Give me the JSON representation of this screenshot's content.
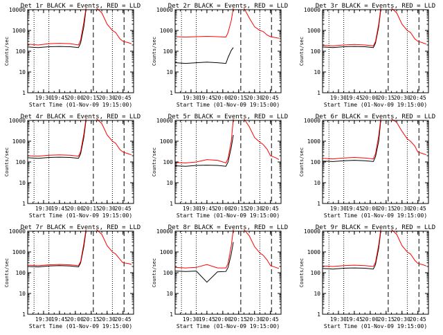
{
  "figure": {
    "xlabel": "Start Time (01-Nov-09 19:15:00)",
    "ylabel": "Counts/sec"
  },
  "colors": {
    "events": "#000000",
    "lld": "#ff0000",
    "axis": "#000000"
  },
  "chart_data": [
    {
      "type": "line",
      "title": "Det 1r BLACK = Events, RED = LLD",
      "xlabel": "Start Time (01-Nov-09 19:15:00)",
      "ylabel": "Counts/sec",
      "xlim": [
        "19:15",
        "20:55"
      ],
      "ylim": [
        1,
        10000
      ],
      "yscale": "log",
      "x_ticks": [
        "19:30",
        "19:45",
        "20:00",
        "20:15",
        "20:30",
        "20:45"
      ],
      "y_ticks": [
        "1",
        "10",
        "100",
        "1000",
        "10000"
      ],
      "dotted_lines": [
        "19:21",
        "19:35",
        "20:35"
      ],
      "dashed_lines": [
        "20:17",
        "20:46"
      ],
      "series": [
        {
          "x": [
            "19:15",
            "19:25",
            "19:35",
            "19:45",
            "19:55",
            "20:03",
            "20:05",
            "20:08",
            "20:10"
          ],
          "y": [
            160,
            150,
            165,
            170,
            165,
            150,
            250,
            1500,
            10000
          ]
        },
        {
          "x": [
            "19:15",
            "19:25",
            "19:35",
            "19:45",
            "19:55",
            "20:03",
            "20:05",
            "20:08",
            "20:10"
          ],
          "y": [
            220,
            200,
            230,
            240,
            230,
            200,
            350,
            2500,
            12000
          ]
        },
        {
          "x": [
            "20:20",
            "20:25",
            "20:30",
            "20:35",
            "20:38",
            "20:42",
            "20:45",
            "20:50",
            "20:53"
          ],
          "y": [
            12000,
            7000,
            2000,
            1000,
            800,
            400,
            300,
            260,
            230
          ]
        }
      ]
    },
    {
      "type": "line",
      "title": "Det 2r BLACK = Events, RED = LLD",
      "xlabel": "Start Time (01-Nov-09 19:15:00)",
      "ylabel": "Counts/sec",
      "xlim": [
        "19:15",
        "20:55"
      ],
      "ylim": [
        1,
        10000
      ],
      "yscale": "log",
      "x_ticks": [
        "19:30",
        "19:45",
        "20:00",
        "20:15",
        "20:30",
        "20:45"
      ],
      "y_ticks": [
        "1",
        "10",
        "100",
        "1000",
        "10000"
      ],
      "dotted_lines": [
        "19:21",
        "19:35",
        "20:35"
      ],
      "dashed_lines": [
        "20:17",
        "20:46"
      ],
      "series": [
        {
          "x": [
            "19:15",
            "19:25",
            "19:35",
            "19:45",
            "19:55",
            "20:03",
            "20:05",
            "20:08",
            "20:10"
          ],
          "y": [
            28,
            26,
            28,
            30,
            28,
            26,
            50,
            110,
            150
          ]
        },
        {
          "x": [
            "19:15",
            "19:25",
            "19:35",
            "19:45",
            "19:55",
            "20:03",
            "20:05",
            "20:08",
            "20:10"
          ],
          "y": [
            500,
            480,
            500,
            520,
            500,
            480,
            800,
            3000,
            12000
          ]
        },
        {
          "x": [
            "20:20",
            "20:25",
            "20:30",
            "20:35",
            "20:38",
            "20:42",
            "20:45",
            "20:50",
            "20:53"
          ],
          "y": [
            12000,
            4000,
            1500,
            1000,
            900,
            600,
            500,
            450,
            420
          ]
        }
      ]
    },
    {
      "type": "line",
      "title": "Det 3r BLACK = Events, RED = LLD",
      "xlabel": "Start Time (01-Nov-09 19:15:00)",
      "ylabel": "Counts/sec",
      "xlim": [
        "19:15",
        "20:55"
      ],
      "ylim": [
        1,
        10000
      ],
      "yscale": "log",
      "x_ticks": [
        "19:30",
        "19:45",
        "20:00",
        "20:15",
        "20:30",
        "20:45"
      ],
      "y_ticks": [
        "1",
        "10",
        "100",
        "1000",
        "10000"
      ],
      "dotted_lines": [
        "19:21",
        "19:35",
        "20:35"
      ],
      "dashed_lines": [
        "20:17",
        "20:46"
      ],
      "series": [
        {
          "x": [
            "19:15",
            "19:25",
            "19:35",
            "19:45",
            "19:55",
            "20:03",
            "20:05",
            "20:08",
            "20:10"
          ],
          "y": [
            160,
            150,
            165,
            170,
            165,
            150,
            250,
            1500,
            10000
          ]
        },
        {
          "x": [
            "19:15",
            "19:25",
            "19:35",
            "19:45",
            "19:55",
            "20:03",
            "20:05",
            "20:08",
            "20:10"
          ],
          "y": [
            190,
            180,
            200,
            210,
            200,
            180,
            300,
            2000,
            12000
          ]
        },
        {
          "x": [
            "20:20",
            "20:25",
            "20:30",
            "20:35",
            "20:38",
            "20:42",
            "20:45",
            "20:50",
            "20:53"
          ],
          "y": [
            12000,
            7000,
            2000,
            1000,
            800,
            400,
            300,
            250,
            220
          ]
        }
      ]
    },
    {
      "type": "line",
      "title": "Det 4r BLACK = Events, RED = LLD",
      "xlabel": "Start Time (01-Nov-09 19:15:00)",
      "ylabel": "Counts/sec",
      "xlim": [
        "19:15",
        "20:55"
      ],
      "ylim": [
        1,
        10000
      ],
      "yscale": "log",
      "x_ticks": [
        "19:30",
        "19:45",
        "20:00",
        "20:15",
        "20:30",
        "20:45"
      ],
      "y_ticks": [
        "1",
        "10",
        "100",
        "1000",
        "10000"
      ],
      "dotted_lines": [
        "19:21",
        "19:35",
        "20:35"
      ],
      "dashed_lines": [
        "20:17",
        "20:46"
      ],
      "series": [
        {
          "x": [
            "19:15",
            "19:25",
            "19:35",
            "19:45",
            "19:55",
            "20:03",
            "20:05",
            "20:08",
            "20:10"
          ],
          "y": [
            160,
            150,
            165,
            170,
            165,
            150,
            250,
            1500,
            10000
          ]
        },
        {
          "x": [
            "19:15",
            "19:25",
            "19:35",
            "19:45",
            "19:55",
            "20:03",
            "20:05",
            "20:08",
            "20:10"
          ],
          "y": [
            200,
            190,
            210,
            220,
            210,
            190,
            320,
            2200,
            12000
          ]
        },
        {
          "x": [
            "20:20",
            "20:25",
            "20:30",
            "20:35",
            "20:38",
            "20:42",
            "20:45",
            "20:50",
            "20:53"
          ],
          "y": [
            12000,
            7000,
            2000,
            1000,
            800,
            400,
            300,
            250,
            220
          ]
        }
      ]
    },
    {
      "type": "line",
      "title": "Det 5r BLACK = Events, RED = LLD",
      "xlabel": "Start Time (01-Nov-09 19:15:00)",
      "ylabel": "Counts/sec",
      "xlim": [
        "19:15",
        "20:55"
      ],
      "ylim": [
        1,
        10000
      ],
      "yscale": "log",
      "x_ticks": [
        "19:30",
        "19:45",
        "20:00",
        "20:15",
        "20:30",
        "20:45"
      ],
      "y_ticks": [
        "1",
        "10",
        "100",
        "1000",
        "10000"
      ],
      "dotted_lines": [
        "19:21",
        "19:35",
        "20:35"
      ],
      "dashed_lines": [
        "20:17",
        "20:46"
      ],
      "series": [
        {
          "x": [
            "19:15",
            "19:25",
            "19:35",
            "19:45",
            "19:55",
            "20:03",
            "20:05",
            "20:08",
            "20:10"
          ],
          "y": [
            65,
            62,
            68,
            70,
            68,
            62,
            100,
            500,
            2000
          ]
        },
        {
          "x": [
            "19:15",
            "19:25",
            "19:35",
            "19:45",
            "19:55",
            "20:03",
            "20:05",
            "20:08",
            "20:10"
          ],
          "y": [
            95,
            90,
            100,
            130,
            120,
            90,
            150,
            1000,
            12000
          ]
        },
        {
          "x": [
            "20:20",
            "20:25",
            "20:30",
            "20:35",
            "20:38",
            "20:42",
            "20:45",
            "20:50",
            "20:53"
          ],
          "y": [
            12000,
            5000,
            1500,
            900,
            700,
            400,
            200,
            160,
            130
          ]
        }
      ]
    },
    {
      "type": "line",
      "title": "Det 6r BLACK = Events, RED = LLD",
      "xlabel": "Start Time (01-Nov-09 19:15:00)",
      "ylabel": "Counts/sec",
      "xlim": [
        "19:15",
        "20:55"
      ],
      "ylim": [
        1,
        10000
      ],
      "yscale": "log",
      "x_ticks": [
        "19:30",
        "19:45",
        "20:00",
        "20:15",
        "20:30",
        "20:45"
      ],
      "y_ticks": [
        "1",
        "10",
        "100",
        "1000",
        "10000"
      ],
      "dotted_lines": [
        "19:21",
        "19:35",
        "20:35"
      ],
      "dashed_lines": [
        "20:17",
        "20:46"
      ],
      "series": [
        {
          "x": [
            "19:15",
            "19:25",
            "19:35",
            "19:45",
            "19:55",
            "20:03",
            "20:05",
            "20:08",
            "20:10"
          ],
          "y": [
            110,
            105,
            115,
            120,
            115,
            105,
            180,
            1000,
            10000
          ]
        },
        {
          "x": [
            "19:15",
            "19:25",
            "19:35",
            "19:45",
            "19:55",
            "20:03",
            "20:05",
            "20:08",
            "20:10"
          ],
          "y": [
            150,
            140,
            155,
            165,
            155,
            140,
            250,
            1800,
            12000
          ]
        },
        {
          "x": [
            "20:20",
            "20:25",
            "20:30",
            "20:35",
            "20:38",
            "20:42",
            "20:45",
            "20:50",
            "20:53"
          ],
          "y": [
            12000,
            8000,
            3000,
            1300,
            1000,
            600,
            300,
            250,
            220
          ]
        }
      ]
    },
    {
      "type": "line",
      "title": "Det 7r BLACK = Events, RED = LLD",
      "xlabel": "Start Time (01-Nov-09 19:15:00)",
      "ylabel": "Counts/sec",
      "xlim": [
        "19:15",
        "20:55"
      ],
      "ylim": [
        1,
        10000
      ],
      "yscale": "log",
      "x_ticks": [
        "19:30",
        "19:45",
        "20:00",
        "20:15",
        "20:30",
        "20:45"
      ],
      "y_ticks": [
        "1",
        "10",
        "100",
        "1000",
        "10000"
      ],
      "dotted_lines": [
        "19:21",
        "19:35",
        "20:35"
      ],
      "dashed_lines": [
        "20:17",
        "20:46"
      ],
      "series": [
        {
          "x": [
            "19:15",
            "19:25",
            "19:35",
            "19:45",
            "19:55",
            "20:03",
            "20:05",
            "20:08",
            "20:10"
          ],
          "y": [
            200,
            190,
            210,
            220,
            210,
            190,
            300,
            1800,
            10000
          ]
        },
        {
          "x": [
            "19:15",
            "19:25",
            "19:35",
            "19:45",
            "19:55",
            "20:03",
            "20:05",
            "20:08",
            "20:10"
          ],
          "y": [
            230,
            220,
            240,
            250,
            240,
            220,
            350,
            2500,
            12000
          ]
        },
        {
          "x": [
            "20:20",
            "20:25",
            "20:30",
            "20:35",
            "20:38",
            "20:42",
            "20:45",
            "20:50",
            "20:53"
          ],
          "y": [
            12000,
            7000,
            2000,
            1000,
            800,
            450,
            300,
            280,
            250
          ]
        }
      ]
    },
    {
      "type": "line",
      "title": "Det 8r BLACK = Events, RED = LLD",
      "xlabel": "Start Time (01-Nov-09 19:15:00)",
      "ylabel": "Counts/sec",
      "xlim": [
        "19:15",
        "20:55"
      ],
      "ylim": [
        1,
        10000
      ],
      "yscale": "log",
      "x_ticks": [
        "19:30",
        "19:45",
        "20:00",
        "20:15",
        "20:30",
        "20:45"
      ],
      "y_ticks": [
        "1",
        "10",
        "100",
        "1000",
        "10000"
      ],
      "dotted_lines": [
        "19:21",
        "19:35",
        "20:35"
      ],
      "dashed_lines": [
        "20:17",
        "20:46"
      ],
      "series": [
        {
          "x": [
            "19:15",
            "19:25",
            "19:35",
            "19:45",
            "19:55",
            "20:03",
            "20:05",
            "20:08",
            "20:10"
          ],
          "y": [
            120,
            115,
            120,
            35,
            110,
            115,
            180,
            800,
            3000
          ]
        },
        {
          "x": [
            "19:15",
            "19:25",
            "19:35",
            "19:45",
            "19:55",
            "20:03",
            "20:05",
            "20:08",
            "20:10"
          ],
          "y": [
            180,
            170,
            180,
            250,
            170,
            170,
            280,
            2000,
            12000
          ]
        },
        {
          "x": [
            "20:20",
            "20:25",
            "20:30",
            "20:35",
            "20:38",
            "20:42",
            "20:45",
            "20:50",
            "20:53"
          ],
          "y": [
            12000,
            6000,
            1800,
            900,
            700,
            400,
            220,
            180,
            160
          ]
        }
      ]
    },
    {
      "type": "line",
      "title": "Det 9r BLACK = Events, RED = LLD",
      "xlabel": "Start Time (01-Nov-09 19:15:00)",
      "ylabel": "Counts/sec",
      "xlim": [
        "19:15",
        "20:55"
      ],
      "ylim": [
        1,
        10000
      ],
      "yscale": "log",
      "x_ticks": [
        "19:30",
        "19:45",
        "20:00",
        "20:15",
        "20:30",
        "20:45"
      ],
      "y_ticks": [
        "1",
        "10",
        "100",
        "1000",
        "10000"
      ],
      "dotted_lines": [
        "19:21",
        "19:35",
        "20:35"
      ],
      "dashed_lines": [
        "20:17",
        "20:46"
      ],
      "series": [
        {
          "x": [
            "19:15",
            "19:25",
            "19:35",
            "19:45",
            "19:55",
            "20:03",
            "20:05",
            "20:08",
            "20:10"
          ],
          "y": [
            160,
            150,
            165,
            170,
            165,
            150,
            250,
            1500,
            10000
          ]
        },
        {
          "x": [
            "19:15",
            "19:25",
            "19:35",
            "19:45",
            "19:55",
            "20:03",
            "20:05",
            "20:08",
            "20:10"
          ],
          "y": [
            210,
            200,
            220,
            230,
            220,
            200,
            320,
            2200,
            12000
          ]
        },
        {
          "x": [
            "20:20",
            "20:25",
            "20:30",
            "20:35",
            "20:38",
            "20:42",
            "20:45",
            "20:50",
            "20:53"
          ],
          "y": [
            12000,
            7000,
            2000,
            1000,
            800,
            400,
            280,
            240,
            210
          ]
        }
      ]
    }
  ]
}
